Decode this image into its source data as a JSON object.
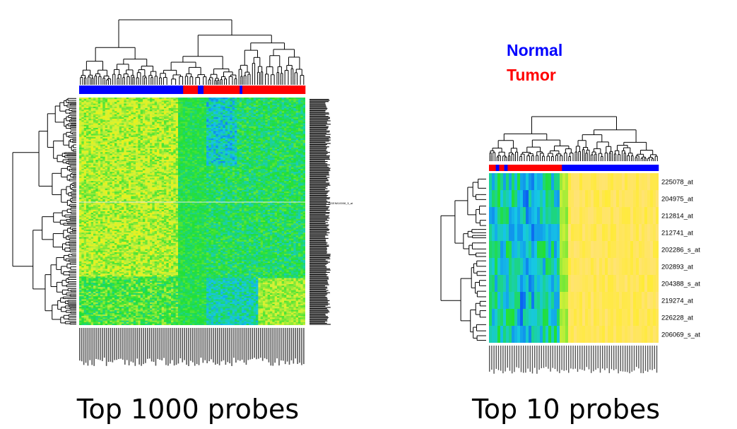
{
  "legend": {
    "normal_label": "Normal",
    "tumor_label": "Tumor",
    "normal_color": "#0000ff",
    "tumor_color": "#ff0000"
  },
  "colors": {
    "low": "#0a5cf2",
    "mid_low": "#16c7e6",
    "mid": "#22e034",
    "mid_high": "#d2f03a",
    "high": "#fff200",
    "pale": "#ffe08a"
  },
  "chart_data": [
    {
      "type": "heatmap",
      "caption": "Top 1000 probes",
      "n_rows": 1000,
      "column_groups": [
        "Normal",
        "Normal",
        "Tumor",
        "Normal",
        "Tumor",
        "Normal",
        "Tumor"
      ],
      "column_group_fractions": [
        0.46,
        0.0,
        0.065,
        0.025,
        0.16,
        0.012,
        0.278
      ],
      "row_labels_legible": [
        "RGEIM10008_5_at"
      ],
      "dendrograms": {
        "columns": true,
        "rows": true
      }
    },
    {
      "type": "heatmap",
      "caption": "Top 10 probes",
      "row_labels": [
        "225078_at",
        "204975_at",
        "212814_at",
        "212741_at",
        "202286_s_at",
        "202893_at",
        "204388_s_at",
        "219274_at",
        "226228_at",
        "206069_s_at"
      ],
      "column_groups": [
        "Tumor",
        "Normal",
        "Tumor",
        "Normal",
        "Tumor",
        "Normal"
      ],
      "column_group_fractions": [
        0.04,
        0.02,
        0.03,
        0.02,
        0.32,
        0.57
      ],
      "dendrograms": {
        "columns": true,
        "rows": true
      }
    }
  ]
}
